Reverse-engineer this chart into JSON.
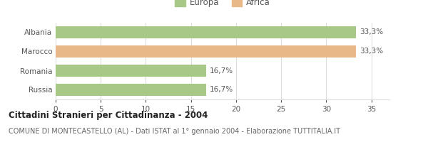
{
  "categories": [
    "Albania",
    "Marocco",
    "Romania",
    "Russia"
  ],
  "values": [
    33.3,
    33.3,
    16.7,
    16.7
  ],
  "bar_colors": [
    "#a8c888",
    "#e8b888",
    "#a8c888",
    "#a8c888"
  ],
  "bar_labels": [
    "33,3%",
    "33,3%",
    "16,7%",
    "16,7%"
  ],
  "legend_items": [
    {
      "label": "Europa",
      "color": "#a8c888"
    },
    {
      "label": "Africa",
      "color": "#e8b888"
    }
  ],
  "xlim": [
    0,
    37
  ],
  "xticks": [
    0,
    5,
    10,
    15,
    20,
    25,
    30,
    35
  ],
  "title": "Cittadini Stranieri per Cittadinanza - 2004",
  "subtitle": "COMUNE DI MONTECASTELLO (AL) - Dati ISTAT al 1° gennaio 2004 - Elaborazione TUTTITALIA.IT",
  "bg_color": "#ffffff",
  "grid_color": "#dddddd",
  "bar_height": 0.6,
  "label_fontsize": 7.5,
  "tick_fontsize": 7.5,
  "title_fontsize": 8.5,
  "subtitle_fontsize": 7,
  "legend_fontsize": 8.5
}
